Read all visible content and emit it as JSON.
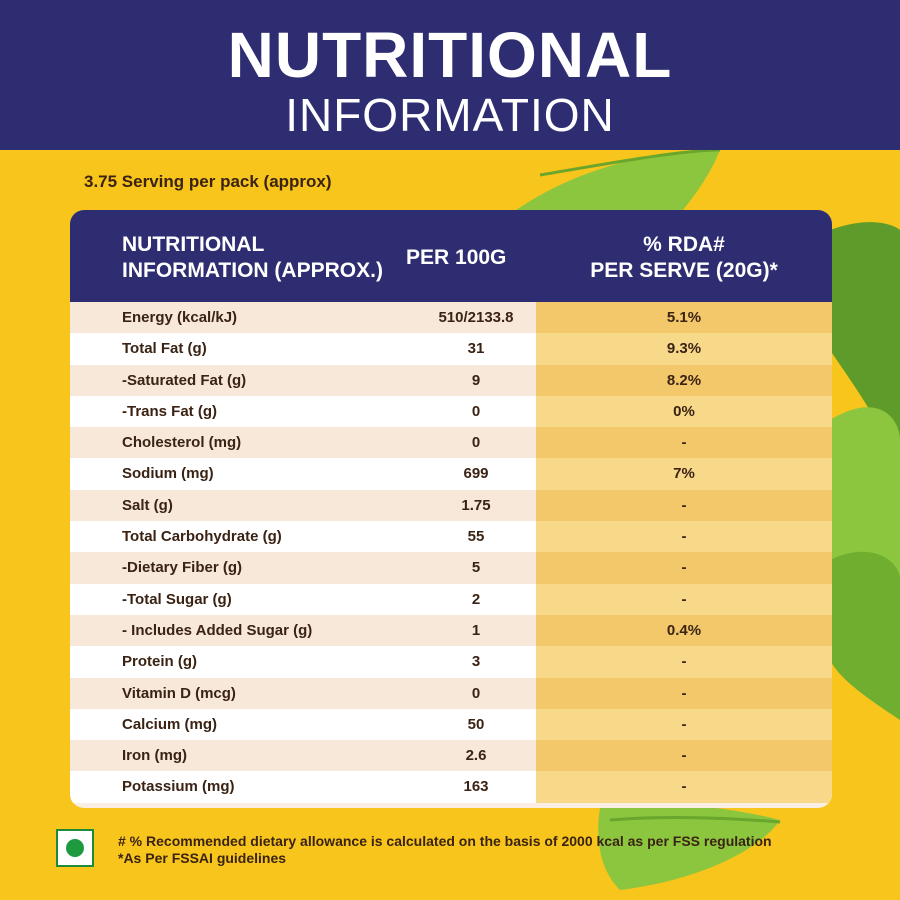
{
  "header": {
    "title_line1": "NUTRITIONAL",
    "title_line2": "INFORMATION"
  },
  "serving_text": "3.75 Serving per pack (approx)",
  "table": {
    "headers": {
      "col1_line1": "NUTRITIONAL",
      "col1_line2": "INFORMATION (APPROX.)",
      "col2": "PER 100G",
      "col3_line1": "% RDA#",
      "col3_line2": "PER SERVE (20G)*"
    },
    "rows": [
      {
        "name": "Energy (kcal/kJ)",
        "per100g": "510/2133.8",
        "rda": "5.1%"
      },
      {
        "name": "Total Fat (g)",
        "per100g": "31",
        "rda": "9.3%"
      },
      {
        "name": "-Saturated Fat (g)",
        "per100g": "9",
        "rda": "8.2%"
      },
      {
        "name": "-Trans Fat (g)",
        "per100g": "0",
        "rda": "0%"
      },
      {
        "name": "Cholesterol (mg)",
        "per100g": "0",
        "rda": "-"
      },
      {
        "name": "Sodium (mg)",
        "per100g": "699",
        "rda": "7%"
      },
      {
        "name": "Salt (g)",
        "per100g": "1.75",
        "rda": "-"
      },
      {
        "name": "Total Carbohydrate (g)",
        "per100g": "55",
        "rda": "-"
      },
      {
        "name": "-Dietary Fiber (g)",
        "per100g": "5",
        "rda": "-"
      },
      {
        "name": "-Total Sugar (g)",
        "per100g": "2",
        "rda": "-"
      },
      {
        "name": "- Includes Added Sugar (g)",
        "per100g": "1",
        "rda": "0.4%"
      },
      {
        "name": "Protein (g)",
        "per100g": "3",
        "rda": "-"
      },
      {
        "name": "Vitamin D (mcg)",
        "per100g": "0",
        "rda": "-"
      },
      {
        "name": "Calcium (mg)",
        "per100g": "50",
        "rda": "-"
      },
      {
        "name": "Iron (mg)",
        "per100g": "2.6",
        "rda": "-"
      },
      {
        "name": "Potassium (mg)",
        "per100g": "163",
        "rda": "-"
      }
    ]
  },
  "footnote": {
    "line1": "# % Recommended dietary allowance  is calculated on the basis of 2000 kcal as per FSS regulation",
    "line2": "*As Per FSSAI guidelines"
  },
  "icons": {
    "veg_mark": "veg-symbol-icon",
    "leaf": "leaf-icon"
  },
  "colors": {
    "brand_navy": "#2e2d72",
    "background_yellow": "#f7c51b",
    "text_brown": "#3b2314",
    "veg_green": "#1d9a3f"
  }
}
